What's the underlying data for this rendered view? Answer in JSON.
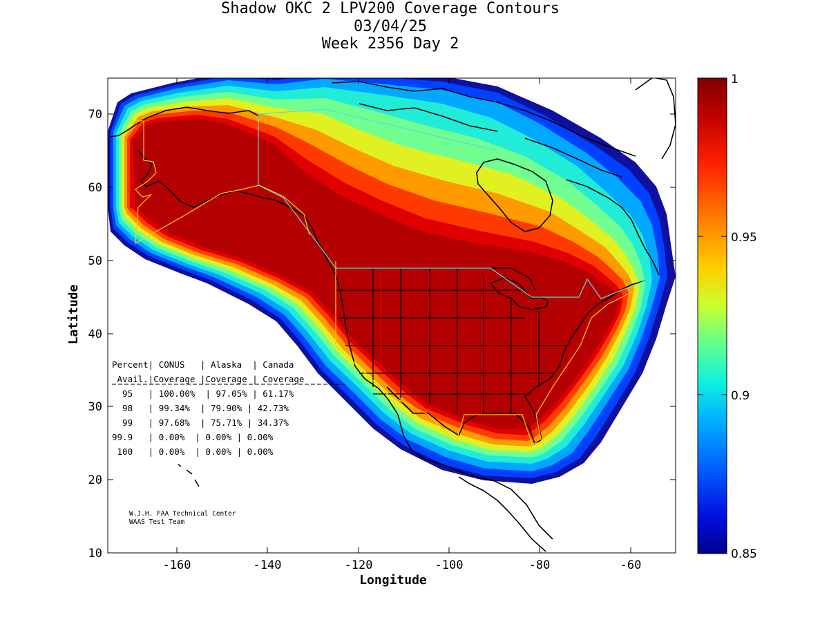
{
  "title": {
    "line1": "Shadow OKC 2 LPV200 Coverage Contours",
    "line2": "03/04/25",
    "line3": "Week 2356 Day 2"
  },
  "axes": {
    "xlabel": "Longitude",
    "ylabel": "Latitude",
    "xticks": [
      "-160",
      "-140",
      "-120",
      "-100",
      "-80",
      "-60"
    ],
    "yticks": [
      "10",
      "20",
      "30",
      "40",
      "50",
      "60",
      "70"
    ]
  },
  "colorbar": {
    "ticks": [
      "1",
      "0.95",
      "0.9",
      "0.85"
    ],
    "min": 0.85,
    "max": 1
  },
  "table": {
    "header1": "Percent| CONUS   | Alaska  | Canada",
    "header2": " Avail.|Coverage |Coverage | Coverage",
    "rows": [
      "  95   | 100.00%  | 97.05% | 61.17%",
      "  98   | 99.34%  | 79.90% | 42.73%",
      "  99   | 97.68%  | 75.71% | 34.37%",
      "99.9   | 0.00%  | 0.00% | 0.00%",
      " 100   | 0.00%  | 0.00% | 0.00%"
    ]
  },
  "credit": {
    "line1": "W.J.H. FAA Technical Center",
    "line2": "WAAS Test Team"
  },
  "map": {
    "lon_range": [
      -175,
      -50
    ],
    "lat_range": [
      10,
      75
    ],
    "coverage_colors": [
      "#0a0a8c",
      "#0040ff",
      "#00a0ff",
      "#00e6ff",
      "#40ffb0",
      "#a0ff50",
      "#ffe000",
      "#ff9000",
      "#ff3000",
      "#e00000",
      "#b00000"
    ]
  }
}
